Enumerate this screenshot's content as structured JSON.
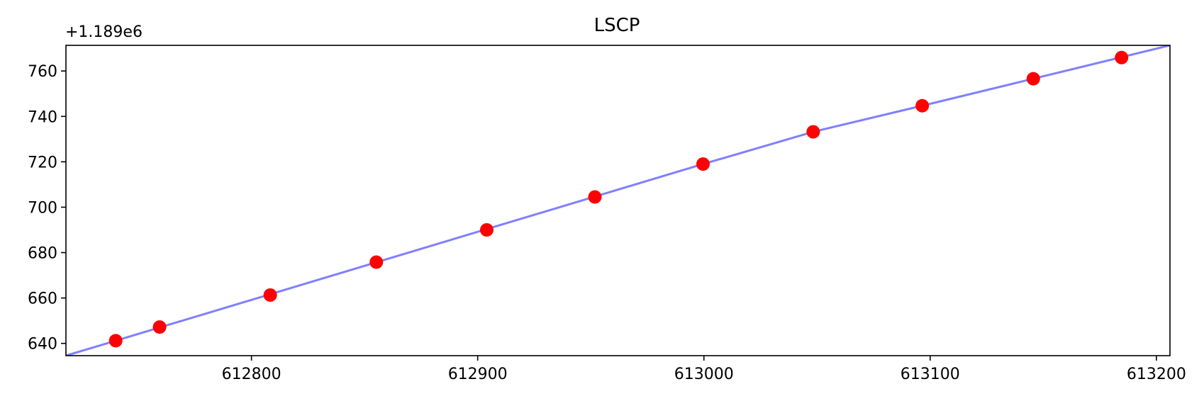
{
  "chart_data": {
    "type": "scatter",
    "title": "LSCP",
    "xlabel": "",
    "ylabel": "",
    "y_offset_label": "+1.189e6",
    "xlim": [
      612718,
      613206
    ],
    "ylim": [
      634.6,
      771.3
    ],
    "x_ticks": [
      612800,
      612900,
      613000,
      613100,
      613200
    ],
    "x_tick_labels": [
      "612800",
      "612900",
      "613000",
      "613100",
      "613200"
    ],
    "y_ticks": [
      640,
      660,
      680,
      700,
      720,
      740,
      760
    ],
    "y_tick_labels": [
      "640",
      "660",
      "680",
      "700",
      "720",
      "740",
      "760"
    ],
    "grid": false,
    "series": [
      {
        "kind": "points",
        "color": "#ff0000",
        "points": [
          [
            612740.0,
            641.2
          ],
          [
            612759.4,
            647.2
          ],
          [
            612808.3,
            661.3
          ],
          [
            612855.2,
            675.8
          ],
          [
            612904.0,
            690.0
          ],
          [
            612951.8,
            704.5
          ],
          [
            612999.6,
            719.0
          ],
          [
            613048.3,
            733.2
          ],
          [
            613096.5,
            744.7
          ],
          [
            613145.6,
            756.6
          ],
          [
            613184.6,
            765.9
          ]
        ]
      },
      {
        "kind": "line",
        "color": "#7f7fff",
        "points": [
          [
            612718.0,
            634.6
          ],
          [
            612999.6,
            719.0
          ],
          [
            613048.3,
            733.2
          ],
          [
            613096.5,
            744.7
          ],
          [
            613145.6,
            756.6
          ],
          [
            613206.0,
            771.3
          ]
        ]
      }
    ]
  }
}
